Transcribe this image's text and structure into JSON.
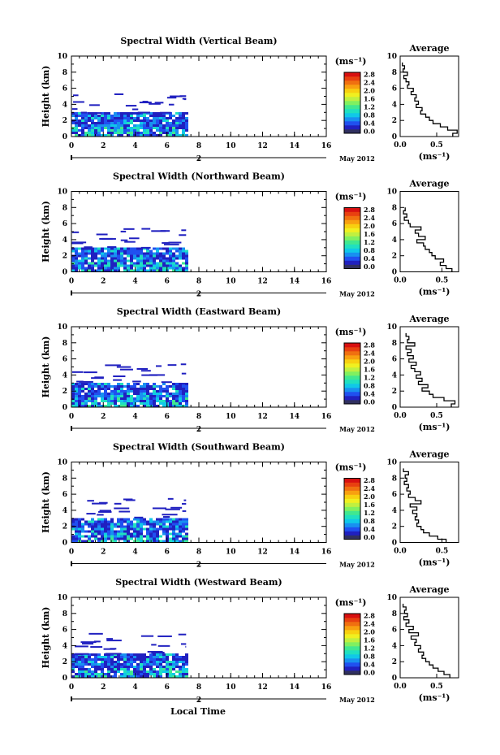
{
  "colorbar": {
    "unit_label": "(ms⁻¹)",
    "tick_labels": [
      "2.8",
      "2.4",
      "2.0",
      "1.6",
      "1.2",
      "0.8",
      "0.4",
      "0.0"
    ],
    "levels": [
      0.0,
      0.2,
      0.4,
      0.6,
      0.8,
      1.0,
      1.2,
      1.4,
      1.6,
      1.8,
      2.0,
      2.2,
      2.4,
      2.6,
      2.8
    ],
    "colors": [
      "#303060",
      "#2020c0",
      "#2050f0",
      "#1890f0",
      "#10c8e8",
      "#20e0c0",
      "#40e890",
      "#80f060",
      "#c0f040",
      "#f0f020",
      "#f8d010",
      "#f8a010",
      "#f07010",
      "#e84010",
      "#d81010"
    ]
  },
  "x_axis_label": "Local Time",
  "date_label": "May 2012",
  "date_marker_label": "2",
  "average_panel": {
    "title": "Average",
    "unit_label": "(ms⁻¹)"
  },
  "chart_data": [
    {
      "type": "heatmap",
      "title": "Spectral Width (Vertical Beam)",
      "ylabel": "Height (km)",
      "xlim": [
        0,
        16
      ],
      "ylim": [
        0,
        10
      ],
      "x_ticks": [
        "0",
        "2",
        "4",
        "6",
        "8",
        "10",
        "12",
        "14",
        "16"
      ],
      "y_ticks": [
        "0",
        "2",
        "4",
        "6",
        "8",
        "10"
      ],
      "data_coverage_hours": [
        0,
        7.2
      ],
      "average_profile": {
        "xlim": [
          0,
          0.8
        ],
        "x_ticks": [
          "0.0",
          "0.5"
        ],
        "height_km": [
          0.2,
          0.6,
          1.0,
          1.4,
          1.8,
          2.2,
          2.6,
          3.0,
          3.4,
          3.8,
          4.2,
          4.6,
          5.0,
          5.4,
          5.8,
          6.2,
          6.6,
          7.0,
          7.4,
          7.8,
          8.2,
          8.6,
          9.0
        ],
        "value_ms": [
          0.72,
          0.78,
          0.65,
          0.55,
          0.45,
          0.4,
          0.35,
          0.28,
          0.3,
          0.22,
          0.25,
          0.2,
          0.22,
          0.15,
          0.18,
          0.1,
          0.12,
          0.08,
          0.05,
          0.1,
          0.04,
          0.06,
          0.03
        ]
      }
    },
    {
      "type": "heatmap",
      "title": "Spectral Width (Northward Beam)",
      "ylabel": "Height (km)",
      "xlim": [
        0,
        16
      ],
      "ylim": [
        0,
        10
      ],
      "x_ticks": [
        "0",
        "2",
        "4",
        "6",
        "8",
        "10",
        "12",
        "14",
        "16"
      ],
      "y_ticks": [
        "0",
        "2",
        "4",
        "6",
        "8",
        "10"
      ],
      "data_coverage_hours": [
        0,
        7.2
      ],
      "average_profile": {
        "xlim": [
          0,
          0.7
        ],
        "x_ticks": [
          "0.0",
          "0.5"
        ],
        "height_km": [
          0.2,
          0.6,
          1.0,
          1.4,
          1.8,
          2.2,
          2.6,
          3.0,
          3.4,
          3.8,
          4.2,
          4.6,
          5.0,
          5.4,
          5.8,
          6.2,
          6.6,
          7.0,
          7.4,
          7.8
        ],
        "value_ms": [
          0.62,
          0.55,
          0.48,
          0.52,
          0.42,
          0.38,
          0.35,
          0.3,
          0.28,
          0.2,
          0.3,
          0.22,
          0.18,
          0.25,
          0.12,
          0.1,
          0.05,
          0.08,
          0.04,
          0.06
        ]
      }
    },
    {
      "type": "heatmap",
      "title": "Spectral Width (Eastward Beam)",
      "ylabel": "Height (km)",
      "xlim": [
        0,
        16
      ],
      "ylim": [
        0,
        10
      ],
      "x_ticks": [
        "0",
        "2",
        "4",
        "6",
        "8",
        "10",
        "12",
        "14",
        "16"
      ],
      "y_ticks": [
        "0",
        "2",
        "4",
        "6",
        "8",
        "10"
      ],
      "data_coverage_hours": [
        0,
        7.2
      ],
      "average_profile": {
        "xlim": [
          0,
          0.8
        ],
        "x_ticks": [
          "0.0",
          "0.5"
        ],
        "height_km": [
          0.2,
          0.6,
          1.0,
          1.4,
          1.8,
          2.2,
          2.6,
          3.0,
          3.4,
          3.8,
          4.2,
          4.6,
          5.0,
          5.4,
          5.8,
          6.2,
          6.6,
          7.0,
          7.4,
          7.8,
          8.2,
          8.6,
          9.0
        ],
        "value_ms": [
          0.7,
          0.75,
          0.6,
          0.45,
          0.4,
          0.3,
          0.38,
          0.25,
          0.3,
          0.22,
          0.28,
          0.2,
          0.15,
          0.22,
          0.12,
          0.18,
          0.1,
          0.15,
          0.08,
          0.2,
          0.1,
          0.12,
          0.08
        ]
      }
    },
    {
      "type": "heatmap",
      "title": "Spectral Width (Southward Beam)",
      "ylabel": "Height (km)",
      "xlim": [
        0,
        16
      ],
      "ylim": [
        0,
        10
      ],
      "x_ticks": [
        "0",
        "2",
        "4",
        "6",
        "8",
        "10",
        "12",
        "14",
        "16"
      ],
      "y_ticks": [
        "0",
        "2",
        "4",
        "6",
        "8",
        "10"
      ],
      "data_coverage_hours": [
        0,
        7.2
      ],
      "average_profile": {
        "xlim": [
          0,
          0.7
        ],
        "x_ticks": [
          "0.0",
          "0.5"
        ],
        "height_km": [
          0.2,
          0.6,
          1.0,
          1.4,
          1.8,
          2.2,
          2.6,
          3.0,
          3.4,
          3.8,
          4.2,
          4.6,
          5.0,
          5.4,
          5.8,
          6.2,
          6.6,
          7.0,
          7.4,
          7.8,
          8.2,
          8.6,
          9.0
        ],
        "value_ms": [
          0.55,
          0.45,
          0.35,
          0.28,
          0.25,
          0.2,
          0.22,
          0.18,
          0.2,
          0.15,
          0.2,
          0.12,
          0.25,
          0.18,
          0.1,
          0.12,
          0.08,
          0.1,
          0.05,
          0.08,
          0.06,
          0.1,
          0.04
        ]
      }
    },
    {
      "type": "heatmap",
      "title": "Spectral Width (Westward Beam)",
      "ylabel": "Height (km)",
      "xlim": [
        0,
        16
      ],
      "ylim": [
        0,
        10
      ],
      "x_ticks": [
        "0",
        "2",
        "4",
        "6",
        "8",
        "10",
        "12",
        "14",
        "16"
      ],
      "y_ticks": [
        "0",
        "2",
        "4",
        "6",
        "8",
        "10"
      ],
      "data_coverage_hours": [
        0,
        7.2
      ],
      "average_profile": {
        "xlim": [
          0,
          0.8
        ],
        "x_ticks": [
          "0.0",
          "0.5"
        ],
        "height_km": [
          0.2,
          0.6,
          1.0,
          1.4,
          1.8,
          2.2,
          2.6,
          3.0,
          3.4,
          3.8,
          4.2,
          4.6,
          5.0,
          5.4,
          5.8,
          6.2,
          6.6,
          7.0,
          7.4,
          7.8,
          8.2,
          8.6,
          9.0
        ],
        "value_ms": [
          0.68,
          0.6,
          0.52,
          0.45,
          0.4,
          0.35,
          0.3,
          0.32,
          0.25,
          0.28,
          0.2,
          0.22,
          0.15,
          0.25,
          0.12,
          0.18,
          0.08,
          0.12,
          0.05,
          0.1,
          0.06,
          0.08,
          0.04
        ]
      }
    }
  ]
}
